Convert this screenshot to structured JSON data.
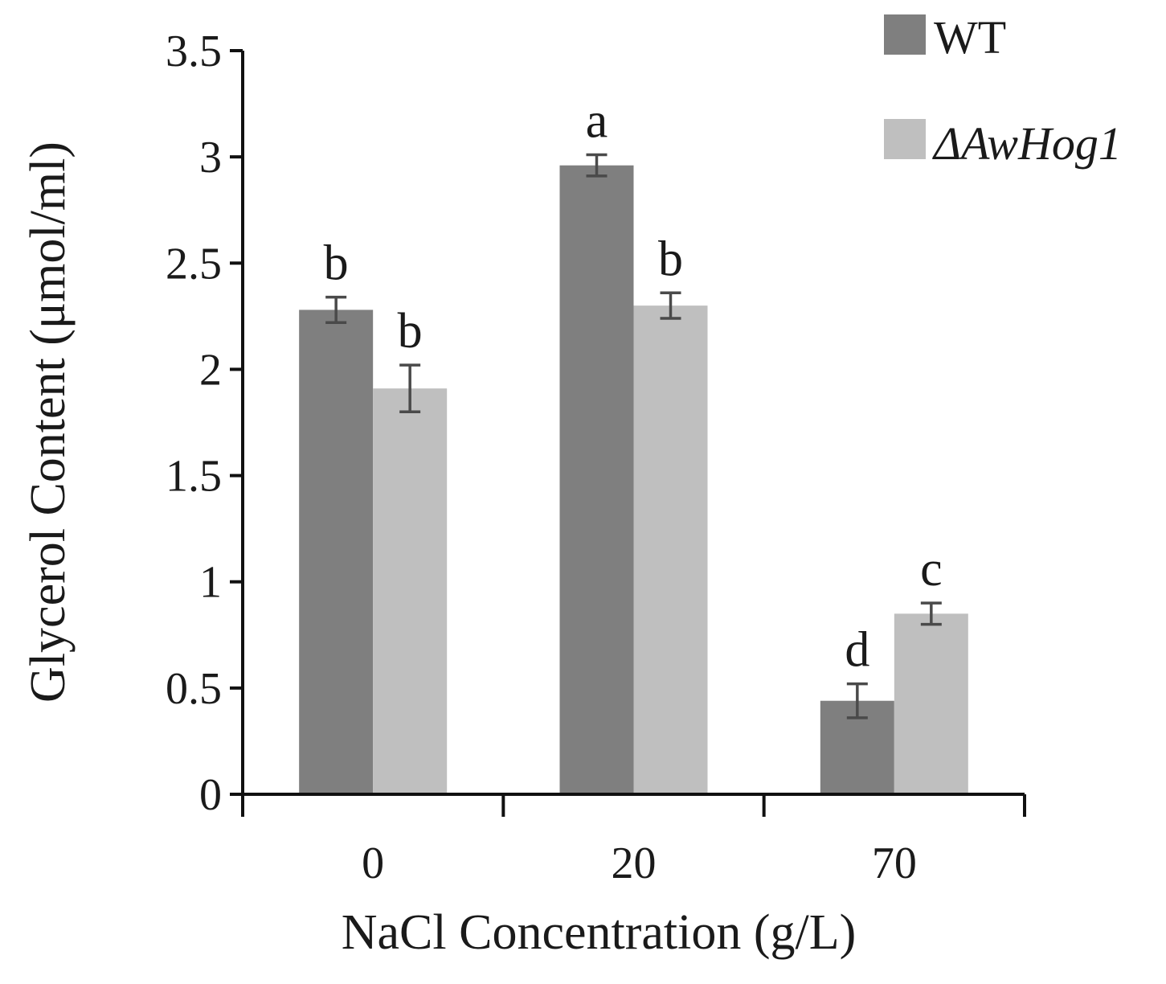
{
  "chart_data": {
    "type": "bar",
    "title": "",
    "xlabel": "NaCl Concentration (g/L)",
    "ylabel": "Glycerol Content (μmol/ml)",
    "ylim": [
      0,
      3.5
    ],
    "yticks": [
      0,
      0.5,
      1,
      1.5,
      2,
      2.5,
      3,
      3.5
    ],
    "ytick_labels": [
      "0",
      "0.5",
      "1",
      "1.5",
      "2",
      "2.5",
      "3",
      "3.5"
    ],
    "categories": [
      "0",
      "20",
      "70"
    ],
    "grid": false,
    "legend_position": "top-right",
    "series": [
      {
        "name": "WT",
        "color": "#7f7f7f",
        "italic": false,
        "values": [
          2.28,
          2.96,
          0.44
        ],
        "errors": [
          0.06,
          0.05,
          0.08
        ],
        "labels": [
          "b",
          "a",
          "d"
        ]
      },
      {
        "name": "ΔAwHog1",
        "color": "#bfbfbf",
        "italic": true,
        "values": [
          1.91,
          2.3,
          0.85
        ],
        "errors": [
          0.11,
          0.06,
          0.05
        ],
        "labels": [
          "b",
          "b",
          "c"
        ]
      }
    ]
  }
}
